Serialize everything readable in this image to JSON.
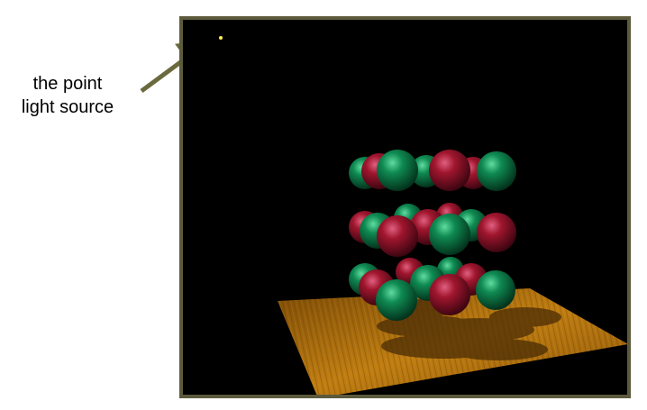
{
  "annotation": {
    "line1": "the point",
    "line2": "light source"
  },
  "colors": {
    "frame_border": "#5c5a3c",
    "background": "#000000",
    "arrow": "#6b6a3e",
    "light": "#ffee55",
    "sphere_red": "#a0162e",
    "sphere_green": "#0f8a52",
    "floor": "#b5740f"
  },
  "icons": {
    "light_source": "point-light-icon",
    "arrow": "arrow-icon"
  }
}
